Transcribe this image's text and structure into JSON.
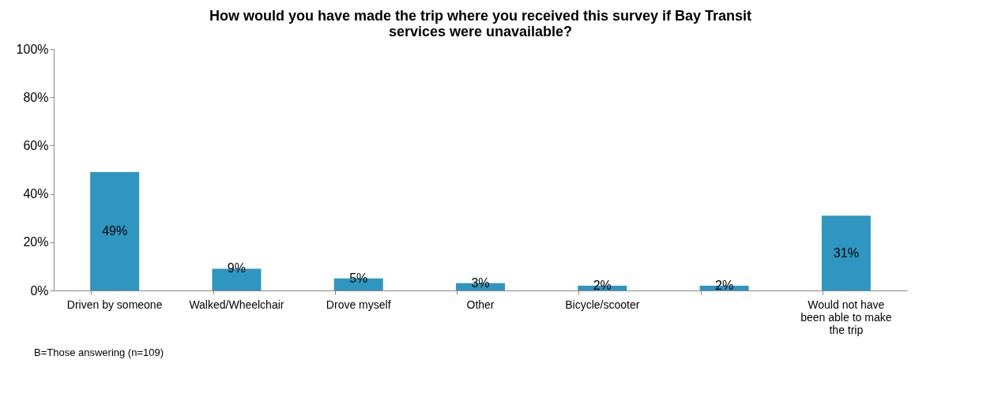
{
  "chart_data": {
    "type": "bar",
    "title": "How would you have made the trip where you received this survey if Bay Transit services were unavailable?",
    "categories": [
      "Driven by someone",
      "Walked/Wheelchair",
      "Drove myself",
      "Other",
      "Bicycle/scooter",
      null,
      "Would not have been able to make the trip"
    ],
    "values": [
      49,
      9,
      5,
      3,
      2,
      2,
      31
    ],
    "value_labels": [
      "49%",
      "9%",
      "5%",
      "3%",
      "2%",
      "2%",
      "31%"
    ],
    "color": "#2e96c0",
    "ylim": [
      0,
      100
    ],
    "yticks": [
      {
        "value": 0,
        "label": "0%"
      },
      {
        "value": 20,
        "label": "20%"
      },
      {
        "value": 40,
        "label": "40%"
      },
      {
        "value": 60,
        "label": "60%"
      },
      {
        "value": 80,
        "label": "80%"
      },
      {
        "value": 100,
        "label": "100%"
      }
    ],
    "grid": false,
    "annotations": [
      "B=Those answering (n=109)"
    ]
  }
}
